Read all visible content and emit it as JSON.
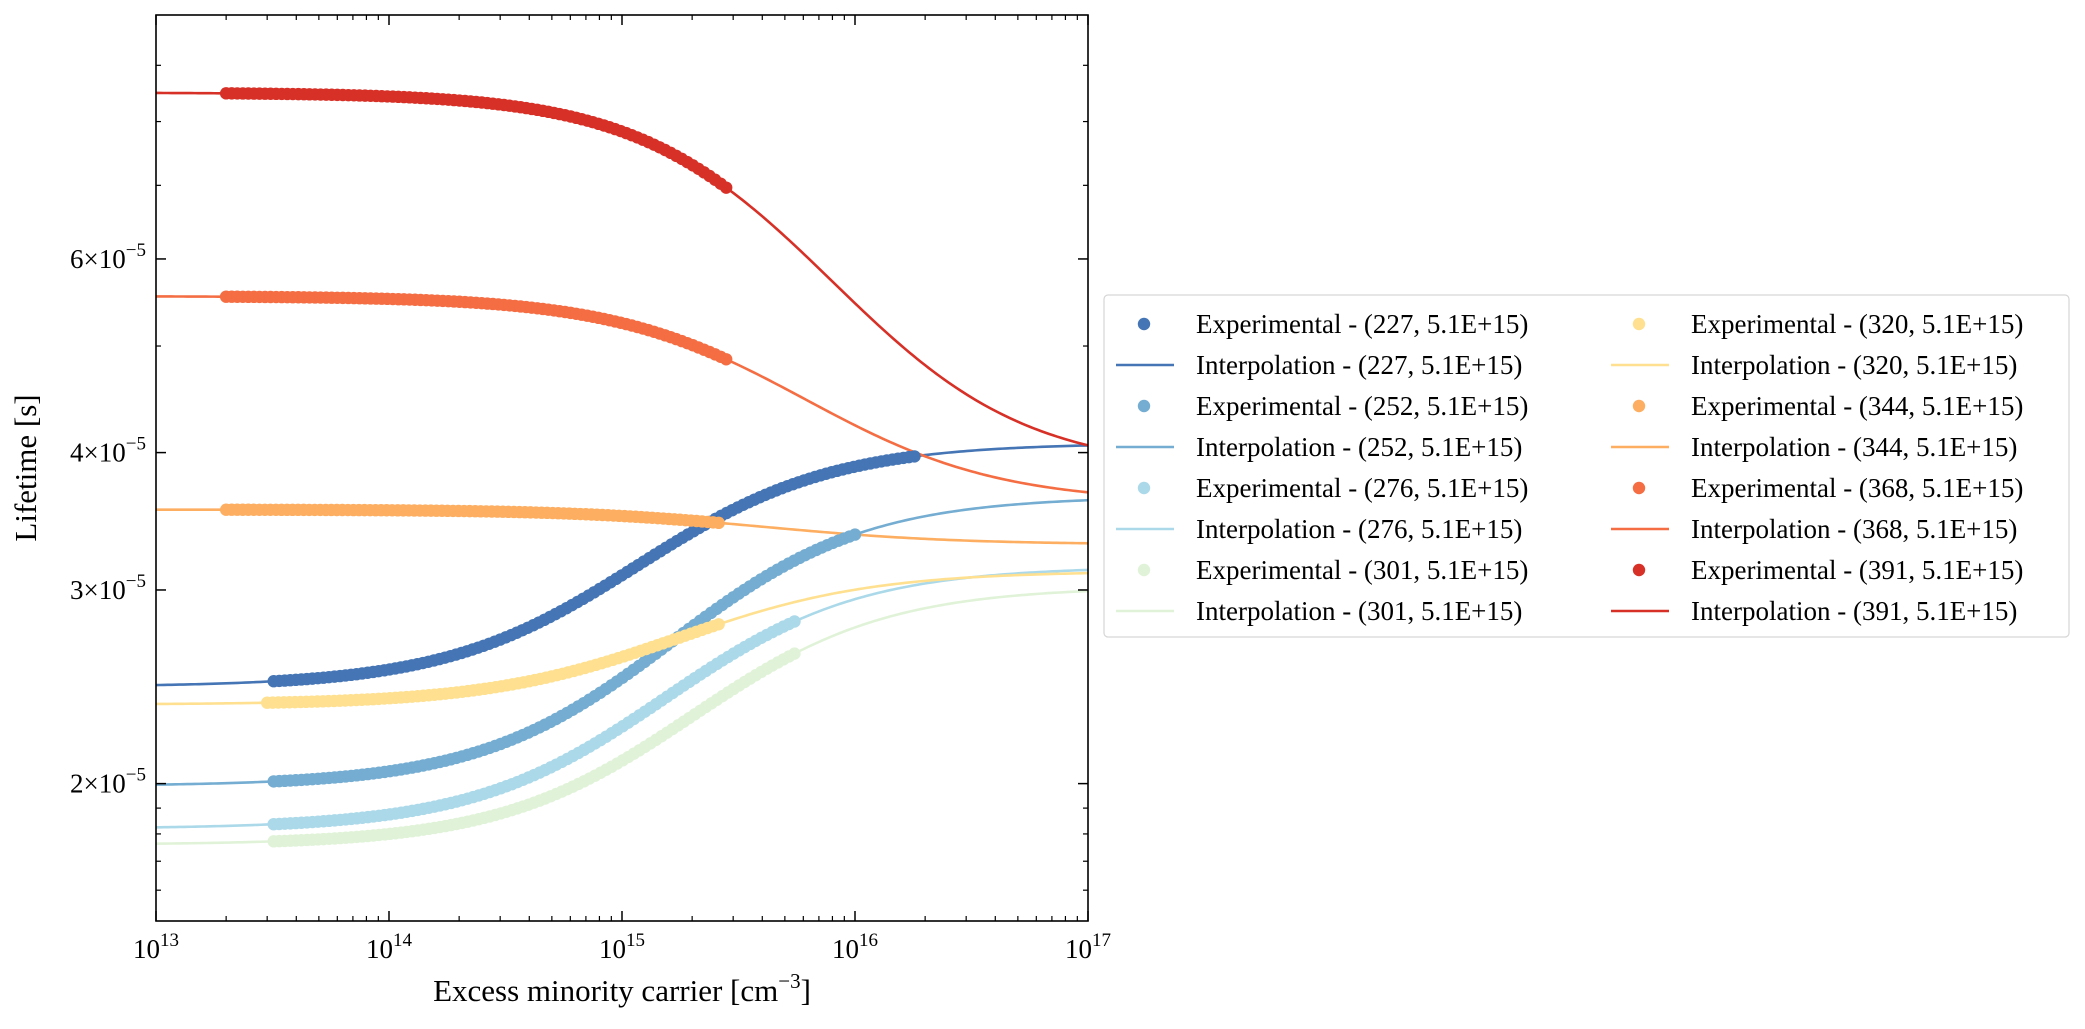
{
  "chart_data": {
    "type": "scatter",
    "title": "",
    "xlabel": "Excess minority carrier [cm",
    "xlabel_sup": "−3",
    "xlabel_end": "]",
    "ylabel": "Lifetime [s]",
    "x_scale": "log",
    "y_scale": "log",
    "xlim": [
      10000000000000.0,
      1e+17
    ],
    "ylim": [
      1.5e-05,
      0.0001
    ],
    "grid": false,
    "legend_position": "right-outside",
    "legend_columns": 2,
    "x_ticks": [
      {
        "value": 10000000000000.0,
        "base": "10",
        "exp": "13"
      },
      {
        "value": 100000000000000.0,
        "base": "10",
        "exp": "14"
      },
      {
        "value": 1000000000000000.0,
        "base": "10",
        "exp": "15"
      },
      {
        "value": 1e+16,
        "base": "10",
        "exp": "16"
      },
      {
        "value": 1e+17,
        "base": "10",
        "exp": "17"
      }
    ],
    "y_ticks": [
      {
        "value": 2e-05,
        "mant": "2",
        "exp": "−5"
      },
      {
        "value": 3e-05,
        "mant": "3",
        "exp": "−5"
      },
      {
        "value": 4e-05,
        "mant": "4",
        "exp": "−5"
      },
      {
        "value": 6e-05,
        "mant": "6",
        "exp": "−5"
      }
    ],
    "series": [
      {
        "temperature": 227,
        "color": "#4575b4",
        "tau_low": 2.45e-05,
        "tau_high": 4.08e-05,
        "n0": 1500000000000000.0,
        "exp_x_range": [
          32000000000000.0,
          1.8e+16
        ],
        "legend_exp": "Experimental - (227, 5.1E+15)",
        "legend_interp": "Interpolation - (227, 5.1E+15)"
      },
      {
        "temperature": 252,
        "color": "#74add1",
        "tau_low": 1.99e-05,
        "tau_high": 3.65e-05,
        "n0": 2200000000000000.0,
        "exp_x_range": [
          32000000000000.0,
          1e+16
        ],
        "legend_exp": "Experimental - (252, 5.1E+15)",
        "legend_interp": "Interpolation - (252, 5.1E+15)"
      },
      {
        "temperature": 276,
        "color": "#abd9e9",
        "tau_low": 1.82e-05,
        "tau_high": 3.15e-05,
        "n0": 2000000000000000.0,
        "exp_x_range": [
          32000000000000.0,
          5500000000000000.0
        ],
        "legend_exp": "Experimental - (276, 5.1E+15)",
        "legend_interp": "Interpolation - (276, 5.1E+15)"
      },
      {
        "temperature": 301,
        "color": "#e0f3d8",
        "tau_low": 1.76e-05,
        "tau_high": 3.02e-05,
        "n0": 2600000000000000.0,
        "exp_x_range": [
          32000000000000.0,
          5500000000000000.0
        ],
        "legend_exp": "Experimental - (301, 5.1E+15)",
        "legend_interp": "Interpolation - (301, 5.1E+15)"
      },
      {
        "temperature": 320,
        "color": "#fee090",
        "tau_low": 2.36e-05,
        "tau_high": 3.12e-05,
        "n0": 2000000000000000.0,
        "exp_x_range": [
          30000000000000.0,
          2600000000000000.0
        ],
        "legend_exp": "Experimental - (320, 5.1E+15)",
        "legend_interp": "Interpolation - (320, 5.1E+15)"
      },
      {
        "temperature": 344,
        "color": "#fdae61",
        "tau_low": 3.55e-05,
        "tau_high": 3.3e-05,
        "n0": 4000000000000000.0,
        "exp_x_range": [
          20000000000000.0,
          2600000000000000.0
        ],
        "legend_exp": "Experimental - (344, 5.1E+15)",
        "legend_interp": "Interpolation - (344, 5.1E+15)"
      },
      {
        "temperature": 368,
        "color": "#f46d43",
        "tau_low": 5.55e-05,
        "tau_high": 3.6e-05,
        "n0": 5000000000000000.0,
        "exp_x_range": [
          20000000000000.0,
          2800000000000000.0
        ],
        "legend_exp": "Experimental - (368, 5.1E+15)",
        "legend_interp": "Interpolation - (368, 5.1E+15)"
      },
      {
        "temperature": 391,
        "color": "#d73027",
        "tau_low": 8.5e-05,
        "tau_high": 3.85e-05,
        "n0": 5500000000000000.0,
        "exp_x_range": [
          20000000000000.0,
          2800000000000000.0
        ],
        "legend_exp": "Experimental - (391, 5.1E+15)",
        "legend_interp": "Interpolation - (391, 5.1E+15)"
      }
    ]
  }
}
